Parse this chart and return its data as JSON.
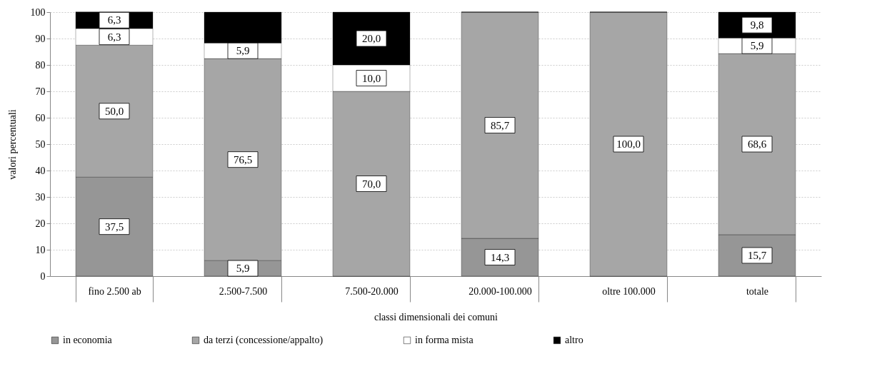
{
  "chart_data": {
    "type": "bar",
    "stacked": true,
    "xlabel": "classi dimensionali dei comuni",
    "ylabel": "valori percentuali",
    "categories": [
      "fino 2.500 ab",
      "2.500-7.500",
      "7.500-20.000",
      "20.000-100.000",
      "oltre 100.000",
      "totale"
    ],
    "series": [
      {
        "name": "in economia",
        "color": "#969696",
        "values": [
          37.5,
          5.9,
          0,
          14.3,
          0,
          15.7
        ],
        "value_labels": [
          "37,5",
          "5,9",
          null,
          "14,3",
          null,
          "15,7"
        ]
      },
      {
        "name": "da terzi (concessione/appalto)",
        "color": "#a6a6a6",
        "values": [
          50.0,
          76.5,
          70.0,
          85.7,
          100.0,
          68.6
        ],
        "value_labels": [
          "50,0",
          "76,5",
          "70,0",
          "85,7",
          "100,0",
          "68,6"
        ]
      },
      {
        "name": "in forma mista",
        "color": "#ffffff",
        "values": [
          6.3,
          5.9,
          10.0,
          0,
          0,
          5.9
        ],
        "value_labels": [
          "6,3",
          "5,9",
          "10,0",
          null,
          null,
          "5,9"
        ]
      },
      {
        "name": "altro",
        "color": "#000000",
        "values": [
          6.3,
          11.7,
          20.0,
          0,
          0,
          9.8
        ],
        "value_labels": [
          "6,3",
          null,
          "20,0",
          null,
          null,
          "9,8"
        ]
      }
    ],
    "ylim": [
      0,
      100
    ],
    "yticks": [
      0,
      10,
      20,
      30,
      40,
      50,
      60,
      70,
      80,
      90,
      100
    ],
    "grid": "y",
    "legend": "bottom"
  }
}
